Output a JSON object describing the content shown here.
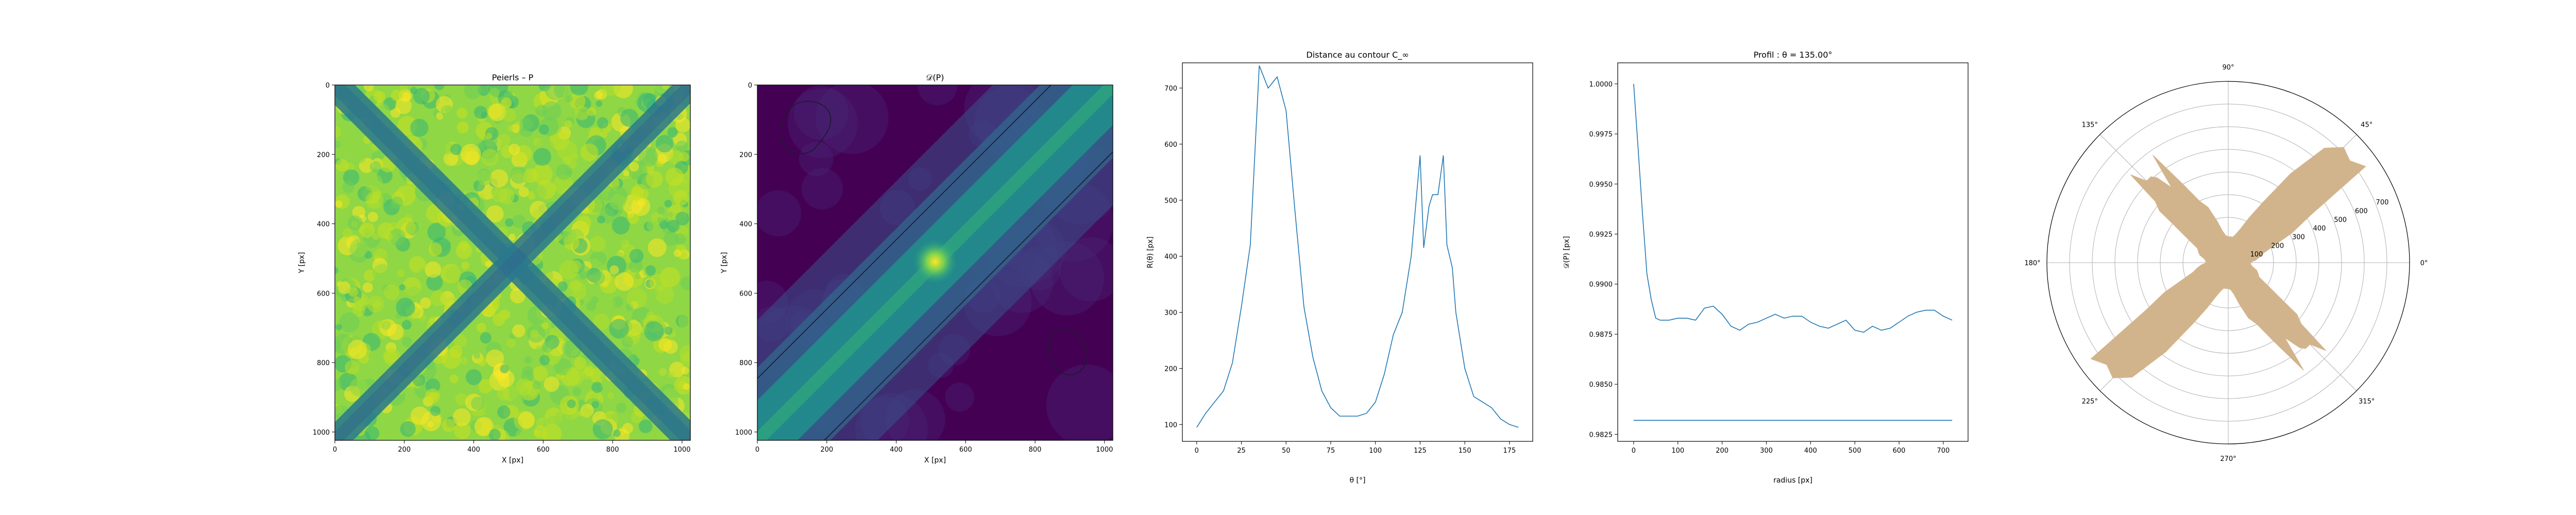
{
  "colors": {
    "line": "#1f77b4",
    "sector": "#d2b48c",
    "frame": "#000000",
    "grid": "#b0b0b0"
  },
  "chart_data": [
    {
      "type": "heatmap",
      "title": "Peierls – P",
      "xlabel": "X [px]",
      "ylabel": "Y [px]",
      "xlim": [
        0,
        1024
      ],
      "ylim": [
        1024,
        0
      ],
      "xticks": [
        "0",
        "200",
        "400",
        "600",
        "800",
        "1000"
      ],
      "yticks": [
        "0",
        "200",
        "400",
        "600",
        "800",
        "1000"
      ],
      "colormap": "viridis",
      "description": "noisy yellow-green field crossed by two darker diagonal bands (X pattern)"
    },
    {
      "type": "heatmap",
      "title": "𝒟(P)",
      "xlabel": "X [px]",
      "ylabel": "Y [px]",
      "xlim": [
        0,
        1024
      ],
      "ylim": [
        1024,
        0
      ],
      "xticks": [
        "0",
        "200",
        "400",
        "600",
        "800",
        "1000"
      ],
      "yticks": [
        "0",
        "200",
        "400",
        "600",
        "800",
        "1000"
      ],
      "colormap": "viridis",
      "description": "distance map with bright diagonal band and a bright peak near (512, 512)"
    },
    {
      "type": "line",
      "title": "Distance au contour C_∞",
      "xlabel": "θ [°]",
      "ylabel": "R(θ) [px]",
      "xlim": [
        -8,
        188
      ],
      "ylim": [
        70,
        745
      ],
      "xticks": [
        "0",
        "25",
        "50",
        "75",
        "100",
        "125",
        "150",
        "175"
      ],
      "yticks": [
        "100",
        "200",
        "300",
        "400",
        "500",
        "600",
        "700"
      ],
      "series": [
        {
          "x": [
            0,
            5,
            10,
            15,
            20,
            25,
            30,
            35,
            40,
            45,
            50,
            55,
            60,
            65,
            70,
            75,
            80,
            85,
            90,
            95,
            100,
            105,
            110,
            115,
            120,
            125,
            127,
            130,
            132,
            135,
            138,
            140,
            143,
            145,
            150,
            155,
            160,
            165,
            170,
            175,
            180
          ],
          "values": [
            95,
            120,
            140,
            160,
            210,
            310,
            420,
            740,
            700,
            720,
            660,
            480,
            310,
            220,
            160,
            130,
            115,
            115,
            115,
            120,
            140,
            190,
            260,
            300,
            400,
            580,
            415,
            490,
            510,
            510,
            580,
            420,
            380,
            300,
            200,
            150,
            140,
            130,
            110,
            100,
            95
          ]
        }
      ]
    },
    {
      "type": "line",
      "title": "Profil : θ = 135.00°",
      "xlabel": "radius [px]",
      "ylabel": "𝒟(P) [px]",
      "xlim": [
        -36,
        756
      ],
      "ylim": [
        0.98215,
        1.00105
      ],
      "xticks": [
        "0",
        "100",
        "200",
        "300",
        "400",
        "500",
        "600",
        "700"
      ],
      "yticks": [
        "0.9825",
        "0.9850",
        "0.9875",
        "0.9900",
        "0.9925",
        "0.9950",
        "0.9975",
        "1.0000"
      ],
      "series": [
        {
          "x": [
            0,
            10,
            20,
            30,
            40,
            50,
            60,
            80,
            100,
            120,
            140,
            160,
            180,
            200,
            220,
            240,
            260,
            280,
            300,
            320,
            340,
            360,
            380,
            400,
            420,
            440,
            460,
            480,
            500,
            520,
            540,
            560,
            580,
            600,
            620,
            640,
            660,
            680,
            700,
            720
          ],
          "values": [
            1.0,
            0.9968,
            0.9935,
            0.9905,
            0.9892,
            0.9883,
            0.9882,
            0.9882,
            0.9883,
            0.9883,
            0.9882,
            0.9888,
            0.9889,
            0.9885,
            0.9879,
            0.9877,
            0.988,
            0.9881,
            0.9883,
            0.9885,
            0.9883,
            0.9884,
            0.9884,
            0.9881,
            0.9879,
            0.9878,
            0.988,
            0.9882,
            0.9877,
            0.9876,
            0.9879,
            0.9877,
            0.9878,
            0.9881,
            0.9884,
            0.9886,
            0.9887,
            0.9887,
            0.9884,
            0.9882
          ]
        },
        {
          "x": [
            0,
            720
          ],
          "values": [
            0.9832,
            0.9832
          ]
        }
      ]
    },
    {
      "type": "polar",
      "angle_ticks": [
        "0°",
        "45°",
        "90°",
        "135°",
        "180°",
        "225°",
        "270°",
        "315°"
      ],
      "radial_ticks": [
        "100",
        "200",
        "300",
        "400",
        "500",
        "600",
        "700"
      ],
      "rmax": 800,
      "theta": [
        0,
        5,
        10,
        15,
        20,
        25,
        30,
        35,
        40,
        45,
        50,
        55,
        60,
        65,
        70,
        75,
        80,
        85,
        90,
        95,
        100,
        105,
        110,
        115,
        120,
        125,
        127,
        130,
        132,
        135,
        138,
        140,
        143,
        145,
        150,
        155,
        160,
        165,
        170,
        175,
        180
      ],
      "r": [
        95,
        120,
        140,
        160,
        210,
        310,
        420,
        740,
        700,
        720,
        660,
        480,
        310,
        220,
        160,
        130,
        115,
        115,
        115,
        120,
        140,
        190,
        260,
        300,
        400,
        580,
        415,
        490,
        510,
        510,
        580,
        420,
        380,
        300,
        200,
        150,
        140,
        130,
        110,
        100,
        95
      ]
    }
  ]
}
